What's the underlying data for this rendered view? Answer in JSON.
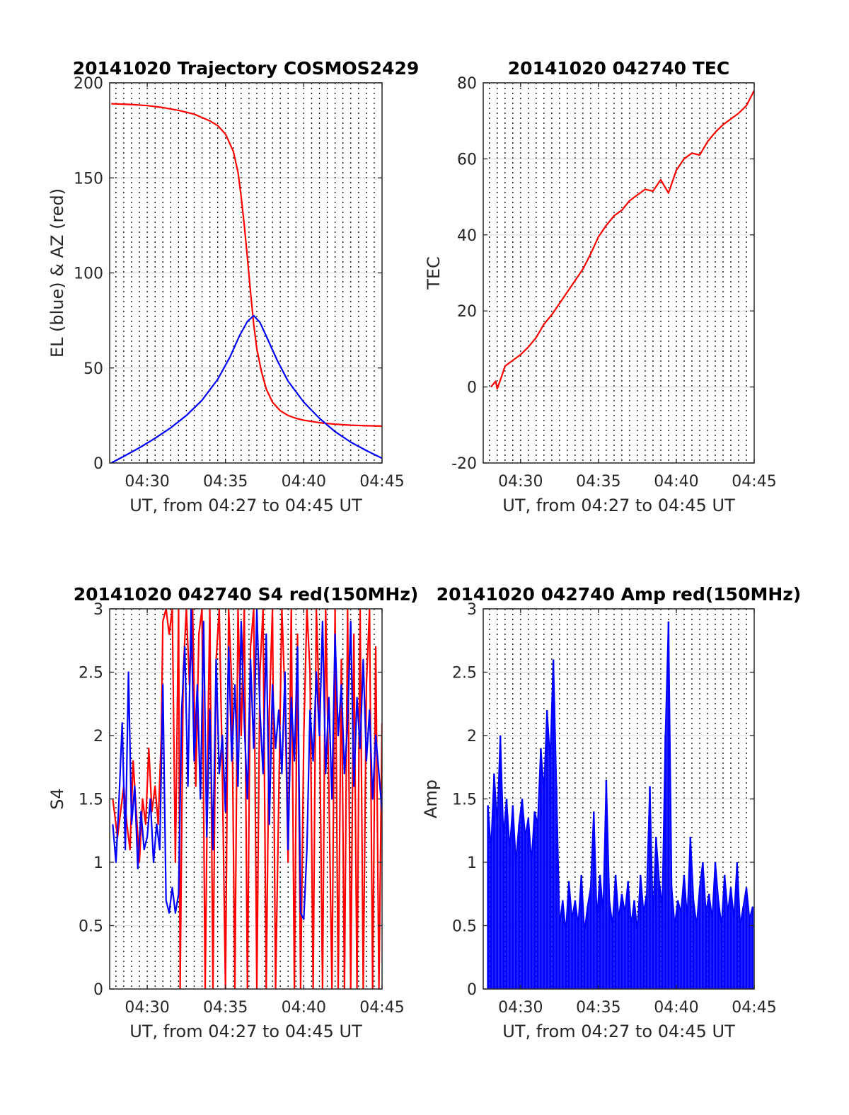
{
  "chart_data": [
    {
      "id": "traj",
      "type": "line",
      "title": "20141020 Trajectory COSMOS2429",
      "xlabel": "UT, from 04:27 to 04:45 UT",
      "ylabel": "EL (blue) & AZ (red)",
      "xlim": [
        27.6,
        45
      ],
      "ylim": [
        0,
        200
      ],
      "xticks": [
        30,
        35,
        40,
        45
      ],
      "xtick_labels": [
        "04:30",
        "04:35",
        "04:40",
        "04:45"
      ],
      "yticks": [
        0,
        50,
        100,
        150,
        200
      ],
      "ytick_labels": [
        "0",
        "50",
        "100",
        "150",
        "200"
      ],
      "grid_minor_x": [
        28,
        28.5,
        29,
        29.5,
        30,
        30.5,
        31,
        31.5,
        32,
        32.5,
        33,
        33.5,
        34,
        34.5,
        35,
        35.5,
        36,
        36.5,
        37,
        37.5,
        38,
        38.5,
        39,
        39.5,
        40,
        40.5,
        41,
        41.5,
        42,
        42.5,
        43,
        43.5,
        44,
        44.5
      ],
      "series": [
        {
          "color": "#ff0000",
          "x": [
            27.7,
            29,
            30,
            31,
            32,
            33,
            34,
            34.5,
            35,
            35.5,
            35.8,
            36,
            36.2,
            36.4,
            36.6,
            36.8,
            37,
            37.3,
            37.6,
            38,
            38.5,
            39,
            39.5,
            40,
            41,
            42,
            43,
            44,
            45
          ],
          "y": [
            189,
            188.6,
            188,
            187,
            185.5,
            183.5,
            180,
            177.5,
            173,
            164,
            153,
            140,
            125,
            108,
            90,
            73,
            60,
            48,
            39,
            32,
            27.5,
            25,
            23.5,
            22.5,
            21.2,
            20.4,
            19.9,
            19.6,
            19.4
          ]
        },
        {
          "color": "#0000ff",
          "x": [
            27.7,
            28.5,
            29.5,
            30.5,
            31.5,
            32.5,
            33.5,
            34.5,
            35.3,
            35.9,
            36.4,
            36.8,
            37.2,
            37.7,
            38.3,
            39,
            40,
            41,
            42,
            43,
            44,
            45
          ],
          "y": [
            0,
            3.5,
            8,
            13,
            18.5,
            25,
            33,
            44,
            56,
            67,
            74.5,
            77.5,
            74,
            65,
            54,
            43,
            32,
            23.5,
            16.5,
            11,
            6.5,
            2.5
          ]
        }
      ]
    },
    {
      "id": "tec",
      "type": "line",
      "title": "20141020 042740 TEC",
      "xlabel": "UT, from 04:27 to 04:45 UT",
      "ylabel": "TEC",
      "xlim": [
        27.6,
        45
      ],
      "ylim": [
        -20,
        80
      ],
      "xticks": [
        30,
        35,
        40,
        45
      ],
      "xtick_labels": [
        "04:30",
        "04:35",
        "04:40",
        "04:45"
      ],
      "yticks": [
        -20,
        0,
        20,
        40,
        60,
        80
      ],
      "ytick_labels": [
        "-20",
        "0",
        "20",
        "40",
        "60",
        "80"
      ],
      "grid_minor_x": [
        28,
        28.5,
        29,
        29.5,
        30,
        30.5,
        31,
        31.5,
        32,
        32.5,
        33,
        33.5,
        34,
        34.5,
        35,
        35.5,
        36,
        36.5,
        37,
        37.5,
        38,
        38.5,
        39,
        39.5,
        40,
        40.5,
        41,
        41.5,
        42,
        42.5,
        43,
        43.5,
        44,
        44.5
      ],
      "series": [
        {
          "color": "#ff0000",
          "x": [
            28.1,
            28.4,
            28.5,
            28.8,
            29,
            29.5,
            30,
            30.5,
            31,
            31.5,
            32,
            32.5,
            33,
            33.5,
            34,
            34.5,
            35,
            35.5,
            36,
            36.5,
            37,
            37.5,
            38,
            38.5,
            39,
            39.5,
            40,
            40.5,
            41,
            41.5,
            42,
            42.5,
            43,
            43.5,
            44,
            44.5,
            45
          ],
          "y": [
            0,
            1.5,
            -0.5,
            3,
            5.5,
            7,
            8.5,
            10.5,
            13,
            16.5,
            19,
            22,
            25,
            28,
            31,
            35,
            39.5,
            42.5,
            45,
            46.5,
            49,
            50.5,
            52,
            51.5,
            54.5,
            51,
            57,
            60,
            61.5,
            61,
            64.5,
            67,
            69,
            70.5,
            72,
            74,
            78
          ]
        }
      ]
    },
    {
      "id": "s4",
      "type": "line",
      "title": "20141020 042740 S4 red(150MHz)",
      "xlabel": "UT, from 04:27 to 04:45 UT",
      "ylabel": "S4",
      "xlim": [
        27.6,
        45
      ],
      "ylim": [
        0,
        3
      ],
      "xticks": [
        30,
        35,
        40,
        45
      ],
      "xtick_labels": [
        "04:30",
        "04:35",
        "04:40",
        "04:45"
      ],
      "yticks": [
        0,
        0.5,
        1,
        1.5,
        2,
        2.5,
        3
      ],
      "ytick_labels": [
        "0",
        "0.5",
        "1",
        "1.5",
        "2",
        "2.5",
        "3"
      ],
      "grid_minor_x": [
        28,
        28.5,
        29,
        29.5,
        30,
        30.5,
        31,
        31.5,
        32,
        32.5,
        33,
        33.5,
        34,
        34.5,
        35,
        35.5,
        36,
        36.5,
        37,
        37.5,
        38,
        38.5,
        39,
        39.5,
        40,
        40.5,
        41,
        41.5,
        42,
        42.5,
        43,
        43.5,
        44,
        44.5
      ],
      "series": [
        {
          "color": "#ff0000",
          "x": [
            27.8,
            28.1,
            28.3,
            28.5,
            28.7,
            28.9,
            29.1,
            29.3,
            29.5,
            29.7,
            29.9,
            30.1,
            30.3,
            30.5,
            30.7,
            30.9,
            31.0,
            31.2,
            31.4,
            31.6,
            31.8,
            32.0,
            32.1,
            32.3,
            32.5,
            32.7,
            32.9,
            33.1,
            33.3,
            33.5,
            33.7,
            33.9,
            34.0,
            34.2,
            34.4,
            34.6,
            34.8,
            35.0,
            35.2,
            35.4,
            35.6,
            35.8,
            36.0,
            36.2,
            36.4,
            36.6,
            36.8,
            37.0,
            37.2,
            37.4,
            37.6,
            37.8,
            38.0,
            38.2,
            38.4,
            38.6,
            38.8,
            39.0,
            39.2,
            39.4,
            39.6,
            39.8,
            40.0,
            40.2,
            40.4,
            40.6,
            40.8,
            41.0,
            41.2,
            41.4,
            41.6,
            41.8,
            42.0,
            42.2,
            42.4,
            42.6,
            42.8,
            43.0,
            43.2,
            43.4,
            43.6,
            43.8,
            44.0,
            44.2,
            44.4,
            44.6,
            44.8,
            45.0
          ],
          "y": [
            1.5,
            1.2,
            1.4,
            1.6,
            1.3,
            1.1,
            1.8,
            1.4,
            1.0,
            1.5,
            1.3,
            1.9,
            1.4,
            1.6,
            1.3,
            2.0,
            2.9,
            3.0,
            2.8,
            3.0,
            1.0,
            3.0,
            0.0,
            2.5,
            3.0,
            2.4,
            3.0,
            1.6,
            2.8,
            3.0,
            0.0,
            2.2,
            3.0,
            0.0,
            2.6,
            3.0,
            1.7,
            0.0,
            3.0,
            2.4,
            0.0,
            3.0,
            2.0,
            3.0,
            0.0,
            2.7,
            3.0,
            0.0,
            2.5,
            3.0,
            0.0,
            2.2,
            3.0,
            0.0,
            1.5,
            3.0,
            2.3,
            1.0,
            3.0,
            0.0,
            2.8,
            0.0,
            2.0,
            3.0,
            2.5,
            0.0,
            3.0,
            2.2,
            0.0,
            3.0,
            1.6,
            0.0,
            3.0,
            0.0,
            2.6,
            0.0,
            3.0,
            0.0,
            2.8,
            0.0,
            3.0,
            0.0,
            2.4,
            3.0,
            0.0,
            2.7,
            0.0,
            2.1
          ]
        },
        {
          "color": "#0000ff",
          "x": [
            27.8,
            28.0,
            28.2,
            28.4,
            28.6,
            28.8,
            29.0,
            29.2,
            29.4,
            29.6,
            29.8,
            30.0,
            30.2,
            30.4,
            30.6,
            30.8,
            31.0,
            31.2,
            31.4,
            31.6,
            31.8,
            32.0,
            32.2,
            32.4,
            32.6,
            32.8,
            33.0,
            33.2,
            33.4,
            33.6,
            33.8,
            34.0,
            34.2,
            34.4,
            34.6,
            34.8,
            35.0,
            35.2,
            35.4,
            35.6,
            35.8,
            36.0,
            36.2,
            36.4,
            36.6,
            36.8,
            37.0,
            37.2,
            37.4,
            37.6,
            37.8,
            38.0,
            38.2,
            38.4,
            38.6,
            38.8,
            39.0,
            39.2,
            39.4,
            39.6,
            39.8,
            40.0,
            40.2,
            40.4,
            40.6,
            40.8,
            41.0,
            41.2,
            41.4,
            41.6,
            41.8,
            42.0,
            42.2,
            42.4,
            42.6,
            42.8,
            43.0,
            43.2,
            43.4,
            43.6,
            43.8,
            44.0,
            44.2,
            44.4,
            44.6,
            44.8,
            45.0
          ],
          "y": [
            1.3,
            1.0,
            1.5,
            2.1,
            1.1,
            2.5,
            1.3,
            1.6,
            0.95,
            1.4,
            1.1,
            1.2,
            1.5,
            1.0,
            1.3,
            1.1,
            2.4,
            0.7,
            0.6,
            0.8,
            0.6,
            0.75,
            2.2,
            2.7,
            1.6,
            3.0,
            1.8,
            2.4,
            1.5,
            2.9,
            1.2,
            2.2,
            1.1,
            2.6,
            1.7,
            2.0,
            1.4,
            2.7,
            1.8,
            2.4,
            1.6,
            2.9,
            2.1,
            1.5,
            2.6,
            1.9,
            3.0,
            2.2,
            1.7,
            2.8,
            1.3,
            2.4,
            1.9,
            2.2,
            1.7,
            2.5,
            1.1,
            2.3,
            1.8,
            2.7,
            0.6,
            0.55,
            1.1,
            2.2,
            1.8,
            2.5,
            2.0,
            2.9,
            1.7,
            2.3,
            1.5,
            2.8,
            2.0,
            2.4,
            1.7,
            2.1,
            2.9,
            1.6,
            2.3,
            1.9,
            2.6,
            1.8,
            2.2,
            1.5,
            2.0,
            1.7,
            1.4
          ]
        }
      ]
    },
    {
      "id": "amp",
      "type": "area",
      "title": "20141020 042740 Amp red(150MHz)",
      "xlabel": "UT, from 04:27 to 04:45 UT",
      "ylabel": "Amp",
      "xlim": [
        27.6,
        45
      ],
      "ylim": [
        0,
        3
      ],
      "xticks": [
        30,
        35,
        40,
        45
      ],
      "xtick_labels": [
        "04:30",
        "04:35",
        "04:40",
        "04:45"
      ],
      "yticks": [
        0,
        0.5,
        1,
        1.5,
        2,
        2.5,
        3
      ],
      "ytick_labels": [
        "0",
        "0.5",
        "1",
        "1.5",
        "2",
        "2.5",
        "3"
      ],
      "grid_minor_x": [
        28,
        28.5,
        29,
        29.5,
        30,
        30.5,
        31,
        31.5,
        32,
        32.5,
        33,
        33.5,
        34,
        34.5,
        35,
        35.5,
        36,
        36.5,
        37,
        37.5,
        38,
        38.5,
        39,
        39.5,
        40,
        40.5,
        41,
        41.5,
        42,
        42.5,
        43,
        43.5,
        44,
        44.5
      ],
      "series": [
        {
          "color": "#0000ff",
          "x": [
            27.9,
            28.1,
            28.3,
            28.5,
            28.7,
            28.9,
            29.1,
            29.3,
            29.5,
            29.7,
            29.9,
            30.1,
            30.3,
            30.5,
            30.7,
            30.9,
            31.1,
            31.3,
            31.5,
            31.7,
            31.9,
            32.1,
            32.3,
            32.5,
            32.7,
            32.9,
            33.1,
            33.3,
            33.5,
            33.7,
            33.9,
            34.1,
            34.3,
            34.5,
            34.7,
            34.9,
            35.1,
            35.3,
            35.5,
            35.7,
            35.9,
            36.1,
            36.3,
            36.5,
            36.7,
            36.9,
            37.1,
            37.3,
            37.5,
            37.7,
            37.9,
            38.1,
            38.3,
            38.5,
            38.7,
            38.9,
            39.1,
            39.3,
            39.5,
            39.7,
            39.9,
            40.1,
            40.3,
            40.5,
            40.7,
            40.9,
            41.1,
            41.3,
            41.5,
            41.7,
            41.9,
            42.1,
            42.3,
            42.5,
            42.7,
            42.9,
            43.1,
            43.3,
            43.5,
            43.7,
            43.9,
            44.1,
            44.3,
            44.5,
            44.7,
            44.9
          ],
          "y": [
            1.45,
            1.1,
            1.7,
            1.3,
            2.0,
            1.2,
            1.5,
            1.1,
            1.45,
            1.0,
            1.3,
            1.5,
            1.2,
            1.35,
            1.0,
            1.4,
            1.3,
            1.9,
            1.55,
            2.2,
            1.8,
            2.6,
            1.6,
            0.5,
            0.7,
            0.45,
            0.85,
            0.55,
            0.7,
            0.5,
            0.9,
            0.45,
            0.65,
            0.8,
            1.4,
            0.55,
            0.9,
            0.6,
            1.65,
            0.7,
            0.5,
            0.9,
            0.55,
            0.75,
            0.6,
            0.85,
            0.5,
            0.7,
            0.45,
            0.9,
            0.6,
            0.75,
            1.6,
            0.55,
            1.2,
            0.85,
            0.65,
            2.0,
            2.9,
            0.8,
            0.5,
            0.7,
            0.6,
            0.9,
            0.55,
            1.2,
            0.7,
            0.5,
            0.8,
            1.0,
            0.6,
            0.75,
            0.55,
            1.0,
            0.7,
            0.5,
            0.9,
            0.6,
            0.8,
            0.55,
            1.0,
            0.5,
            0.65,
            0.8,
            0.55,
            0.65
          ]
        }
      ]
    }
  ]
}
